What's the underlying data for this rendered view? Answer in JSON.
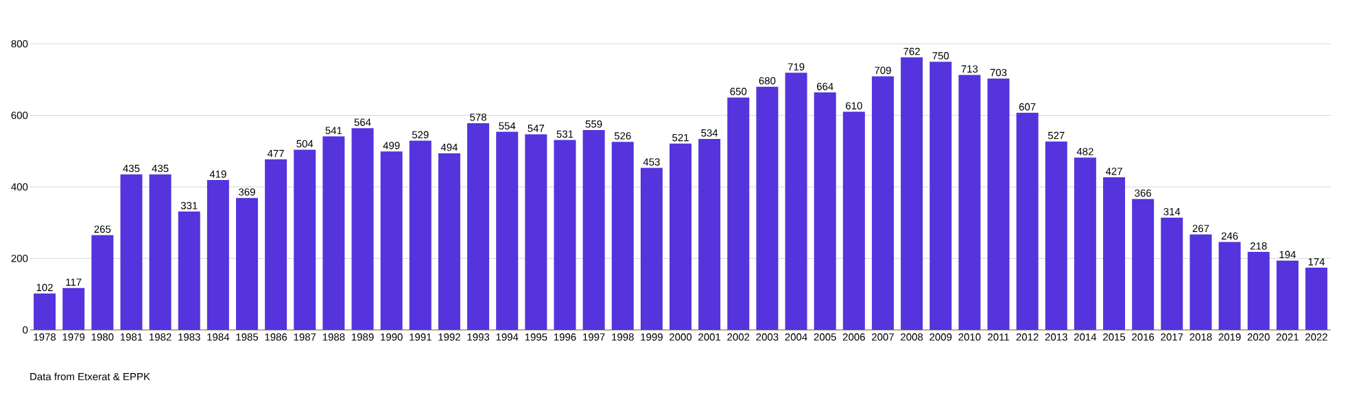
{
  "chart_data": {
    "type": "bar",
    "categories": [
      "1978",
      "1979",
      "1980",
      "1981",
      "1982",
      "1983",
      "1984",
      "1985",
      "1986",
      "1987",
      "1988",
      "1989",
      "1990",
      "1991",
      "1992",
      "1993",
      "1994",
      "1995",
      "1996",
      "1997",
      "1998",
      "1999",
      "2000",
      "2001",
      "2002",
      "2003",
      "2004",
      "2005",
      "2006",
      "2007",
      "2008",
      "2009",
      "2010",
      "2011",
      "2012",
      "2013",
      "2014",
      "2015",
      "2016",
      "2017",
      "2018",
      "2019",
      "2020",
      "2021",
      "2022"
    ],
    "values": [
      102,
      117,
      265,
      435,
      435,
      331,
      419,
      369,
      477,
      504,
      541,
      564,
      499,
      529,
      494,
      578,
      554,
      547,
      531,
      559,
      526,
      453,
      521,
      534,
      650,
      680,
      719,
      664,
      610,
      709,
      762,
      750,
      713,
      703,
      607,
      527,
      482,
      427,
      366,
      314,
      267,
      246,
      218,
      194,
      174
    ],
    "color": "#5533dd",
    "ylim": [
      0,
      800
    ],
    "yticks": [
      0,
      200,
      400,
      600,
      800
    ],
    "grid": "y",
    "data_labels": true,
    "annotations": [
      "Data from Etxerat & EPPK"
    ]
  }
}
